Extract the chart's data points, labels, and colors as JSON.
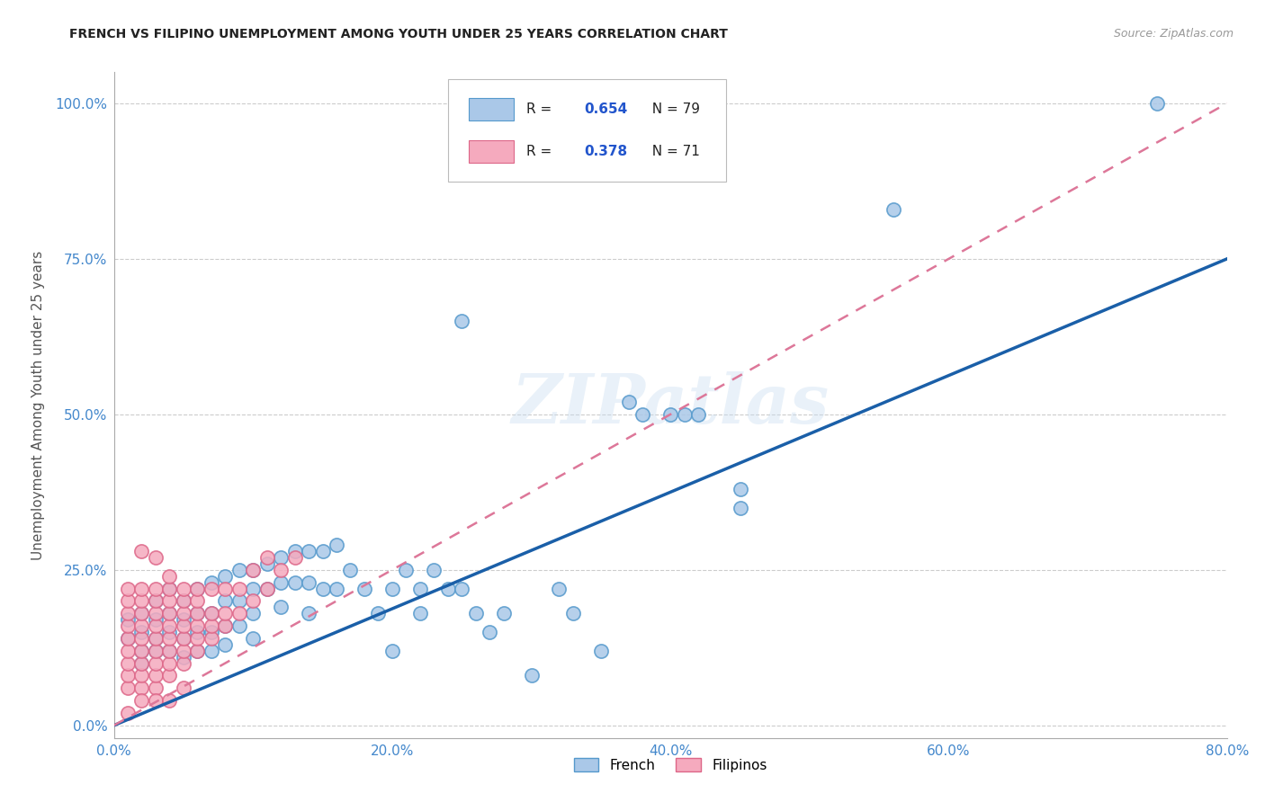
{
  "title": "FRENCH VS FILIPINO UNEMPLOYMENT AMONG YOUTH UNDER 25 YEARS CORRELATION CHART",
  "source": "Source: ZipAtlas.com",
  "ylabel": "Unemployment Among Youth under 25 years",
  "xlabel": "",
  "xlim": [
    0.0,
    0.8
  ],
  "ylim": [
    -0.02,
    1.05
  ],
  "xtick_labels": [
    "0.0%",
    "",
    "20.0%",
    "",
    "40.0%",
    "",
    "60.0%",
    "",
    "80.0%"
  ],
  "xtick_values": [
    0.0,
    0.1,
    0.2,
    0.3,
    0.4,
    0.5,
    0.6,
    0.7,
    0.8
  ],
  "ytick_labels": [
    "0.0%",
    "25.0%",
    "50.0%",
    "75.0%",
    "100.0%"
  ],
  "ytick_values": [
    0.0,
    0.25,
    0.5,
    0.75,
    1.0
  ],
  "french_color": "#aac8e8",
  "filipino_color": "#f5aabe",
  "french_edge": "#5599cc",
  "filipino_edge": "#dd6688",
  "french_R": 0.654,
  "french_N": 79,
  "filipino_R": 0.378,
  "filipino_N": 71,
  "french_line_color": "#1a5fa8",
  "filipino_line_color": "#dd7799",
  "title_color": "#222222",
  "axis_label_color": "#555555",
  "tick_color": "#4488cc",
  "legend_R_color": "#2255cc",
  "watermark": "ZIPatlas",
  "french_line": [
    [
      0.0,
      0.0
    ],
    [
      0.8,
      0.75
    ]
  ],
  "filipino_line": [
    [
      0.0,
      0.0
    ],
    [
      0.8,
      1.0
    ]
  ],
  "french_scatter": [
    [
      0.01,
      0.17
    ],
    [
      0.01,
      0.14
    ],
    [
      0.02,
      0.18
    ],
    [
      0.02,
      0.15
    ],
    [
      0.02,
      0.12
    ],
    [
      0.02,
      0.1
    ],
    [
      0.03,
      0.2
    ],
    [
      0.03,
      0.17
    ],
    [
      0.03,
      0.14
    ],
    [
      0.03,
      0.12
    ],
    [
      0.04,
      0.22
    ],
    [
      0.04,
      0.18
    ],
    [
      0.04,
      0.15
    ],
    [
      0.04,
      0.12
    ],
    [
      0.05,
      0.2
    ],
    [
      0.05,
      0.17
    ],
    [
      0.05,
      0.14
    ],
    [
      0.05,
      0.11
    ],
    [
      0.06,
      0.22
    ],
    [
      0.06,
      0.18
    ],
    [
      0.06,
      0.15
    ],
    [
      0.06,
      0.12
    ],
    [
      0.07,
      0.23
    ],
    [
      0.07,
      0.18
    ],
    [
      0.07,
      0.15
    ],
    [
      0.07,
      0.12
    ],
    [
      0.08,
      0.24
    ],
    [
      0.08,
      0.2
    ],
    [
      0.08,
      0.16
    ],
    [
      0.08,
      0.13
    ],
    [
      0.09,
      0.25
    ],
    [
      0.09,
      0.2
    ],
    [
      0.09,
      0.16
    ],
    [
      0.1,
      0.25
    ],
    [
      0.1,
      0.22
    ],
    [
      0.1,
      0.18
    ],
    [
      0.1,
      0.14
    ],
    [
      0.11,
      0.26
    ],
    [
      0.11,
      0.22
    ],
    [
      0.12,
      0.27
    ],
    [
      0.12,
      0.23
    ],
    [
      0.12,
      0.19
    ],
    [
      0.13,
      0.28
    ],
    [
      0.13,
      0.23
    ],
    [
      0.14,
      0.28
    ],
    [
      0.14,
      0.23
    ],
    [
      0.14,
      0.18
    ],
    [
      0.15,
      0.28
    ],
    [
      0.15,
      0.22
    ],
    [
      0.16,
      0.29
    ],
    [
      0.16,
      0.22
    ],
    [
      0.17,
      0.25
    ],
    [
      0.18,
      0.22
    ],
    [
      0.19,
      0.18
    ],
    [
      0.2,
      0.22
    ],
    [
      0.2,
      0.12
    ],
    [
      0.21,
      0.25
    ],
    [
      0.22,
      0.22
    ],
    [
      0.22,
      0.18
    ],
    [
      0.23,
      0.25
    ],
    [
      0.24,
      0.22
    ],
    [
      0.25,
      0.22
    ],
    [
      0.26,
      0.18
    ],
    [
      0.27,
      0.15
    ],
    [
      0.28,
      0.18
    ],
    [
      0.3,
      0.08
    ],
    [
      0.32,
      0.22
    ],
    [
      0.33,
      0.18
    ],
    [
      0.35,
      0.12
    ],
    [
      0.37,
      0.52
    ],
    [
      0.38,
      0.5
    ],
    [
      0.4,
      0.5
    ],
    [
      0.41,
      0.5
    ],
    [
      0.42,
      0.5
    ],
    [
      0.45,
      0.38
    ],
    [
      0.45,
      0.35
    ],
    [
      0.25,
      0.65
    ],
    [
      0.56,
      0.83
    ],
    [
      0.75,
      1.0
    ]
  ],
  "filipino_scatter": [
    [
      0.01,
      0.06
    ],
    [
      0.01,
      0.08
    ],
    [
      0.01,
      0.1
    ],
    [
      0.01,
      0.12
    ],
    [
      0.01,
      0.14
    ],
    [
      0.01,
      0.16
    ],
    [
      0.01,
      0.18
    ],
    [
      0.01,
      0.2
    ],
    [
      0.01,
      0.22
    ],
    [
      0.01,
      0.02
    ],
    [
      0.02,
      0.06
    ],
    [
      0.02,
      0.08
    ],
    [
      0.02,
      0.1
    ],
    [
      0.02,
      0.12
    ],
    [
      0.02,
      0.14
    ],
    [
      0.02,
      0.16
    ],
    [
      0.02,
      0.18
    ],
    [
      0.02,
      0.2
    ],
    [
      0.02,
      0.22
    ],
    [
      0.02,
      0.04
    ],
    [
      0.03,
      0.06
    ],
    [
      0.03,
      0.08
    ],
    [
      0.03,
      0.1
    ],
    [
      0.03,
      0.12
    ],
    [
      0.03,
      0.14
    ],
    [
      0.03,
      0.16
    ],
    [
      0.03,
      0.18
    ],
    [
      0.03,
      0.2
    ],
    [
      0.03,
      0.22
    ],
    [
      0.03,
      0.04
    ],
    [
      0.04,
      0.08
    ],
    [
      0.04,
      0.1
    ],
    [
      0.04,
      0.12
    ],
    [
      0.04,
      0.14
    ],
    [
      0.04,
      0.16
    ],
    [
      0.04,
      0.18
    ],
    [
      0.04,
      0.2
    ],
    [
      0.04,
      0.22
    ],
    [
      0.04,
      0.24
    ],
    [
      0.04,
      0.04
    ],
    [
      0.05,
      0.1
    ],
    [
      0.05,
      0.12
    ],
    [
      0.05,
      0.14
    ],
    [
      0.05,
      0.16
    ],
    [
      0.05,
      0.18
    ],
    [
      0.05,
      0.2
    ],
    [
      0.05,
      0.22
    ],
    [
      0.05,
      0.06
    ],
    [
      0.06,
      0.12
    ],
    [
      0.06,
      0.14
    ],
    [
      0.06,
      0.16
    ],
    [
      0.06,
      0.18
    ],
    [
      0.06,
      0.2
    ],
    [
      0.06,
      0.22
    ],
    [
      0.07,
      0.14
    ],
    [
      0.07,
      0.16
    ],
    [
      0.07,
      0.18
    ],
    [
      0.07,
      0.22
    ],
    [
      0.08,
      0.16
    ],
    [
      0.08,
      0.18
    ],
    [
      0.08,
      0.22
    ],
    [
      0.09,
      0.18
    ],
    [
      0.09,
      0.22
    ],
    [
      0.1,
      0.2
    ],
    [
      0.1,
      0.25
    ],
    [
      0.11,
      0.22
    ],
    [
      0.11,
      0.27
    ],
    [
      0.12,
      0.25
    ],
    [
      0.13,
      0.27
    ],
    [
      0.02,
      0.28
    ],
    [
      0.03,
      0.27
    ]
  ]
}
